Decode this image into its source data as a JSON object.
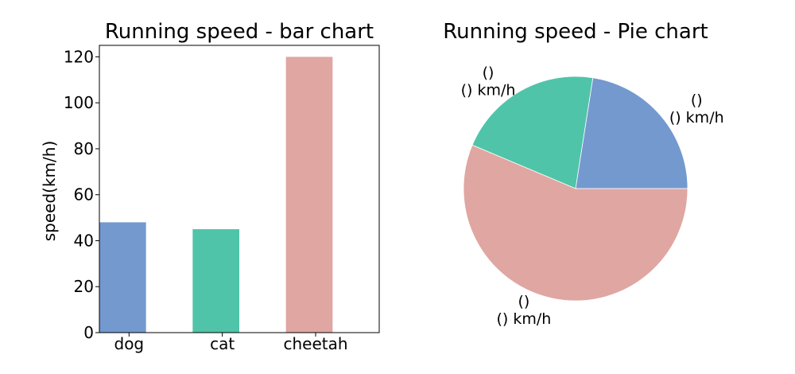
{
  "chart_data": [
    {
      "type": "bar",
      "title": "Running speed - bar chart",
      "xlabel": "",
      "ylabel": "speed(km/h)",
      "categories": [
        "dog",
        "cat",
        "cheetah"
      ],
      "values": [
        48,
        45,
        120
      ],
      "colors": [
        "#7399cf",
        "#50c4a9",
        "#e0a6a2"
      ],
      "ylim": [
        0,
        125
      ],
      "yticks": [
        0,
        20,
        40,
        60,
        80,
        100,
        120
      ],
      "grid": false,
      "legend": "none"
    },
    {
      "type": "pie",
      "title": "Running speed - Pie chart",
      "values": [
        48,
        45,
        120
      ],
      "colors": [
        "#7399cf",
        "#50c4a9",
        "#e0a6a2"
      ],
      "labels": [
        [
          "()",
          "() km/h"
        ],
        [
          "()",
          "() km/h"
        ],
        [
          "()",
          "() km/h"
        ]
      ],
      "start_angle": 0,
      "direction": "counterclockwise",
      "legend": "none"
    }
  ]
}
